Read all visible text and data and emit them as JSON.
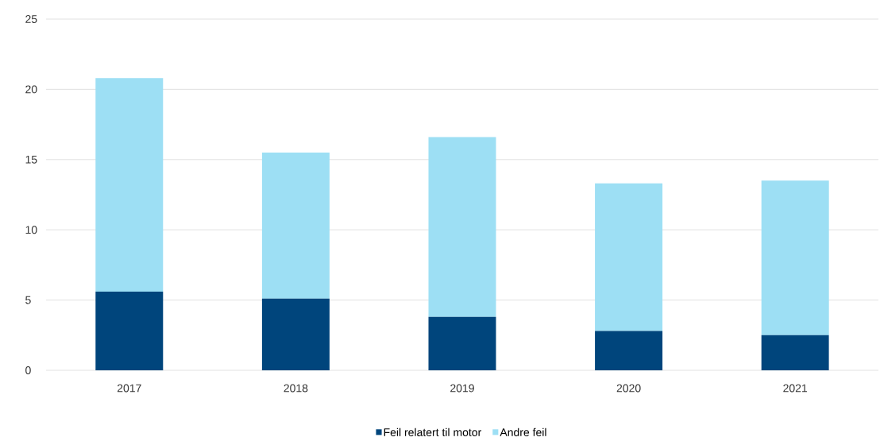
{
  "chart_data": {
    "type": "bar",
    "stacked": true,
    "categories": [
      "2017",
      "2018",
      "2019",
      "2020",
      "2021"
    ],
    "series": [
      {
        "name": "Feil relatert til motor",
        "color": "#00457c",
        "values": [
          5.6,
          5.1,
          3.8,
          2.8,
          2.5
        ]
      },
      {
        "name": "Andre feil",
        "color": "#9ddff4",
        "values": [
          15.2,
          10.4,
          12.8,
          10.5,
          11.0
        ]
      }
    ],
    "ylim": [
      0,
      25
    ],
    "yticks": [
      0,
      5,
      10,
      15,
      20,
      25
    ],
    "grid": "y",
    "legend": "bottom"
  }
}
